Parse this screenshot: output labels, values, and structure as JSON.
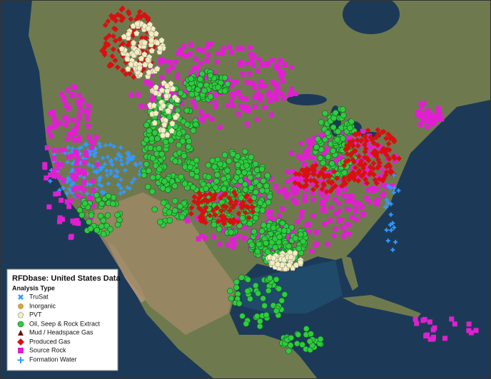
{
  "legend": {
    "title": "RFDbase: United States Data",
    "subtitle": "Analysis Type",
    "items": [
      {
        "label": "TruSat"
      },
      {
        "label": "Inorganic"
      },
      {
        "label": "PVT"
      },
      {
        "label": "Oil, Seep & Rock Extract"
      },
      {
        "label": "Mud / Headspace Gas"
      },
      {
        "label": "Produced Gas"
      },
      {
        "label": "Source Rock"
      },
      {
        "label": "Formation Water"
      }
    ]
  }
}
